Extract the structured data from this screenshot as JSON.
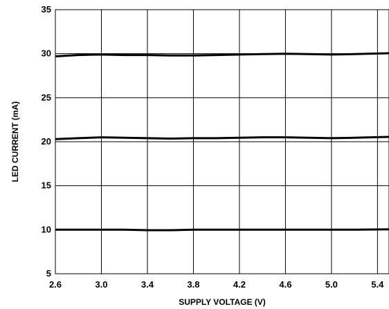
{
  "chart_data": {
    "type": "line",
    "title": "",
    "xlabel": "SUPPLY VOLTAGE (V)",
    "ylabel": "LED CURRENT (mA)",
    "xlim": [
      2.6,
      5.5
    ],
    "ylim": [
      5,
      35
    ],
    "xticks": [
      2.6,
      3.0,
      3.4,
      3.8,
      4.2,
      4.6,
      5.0,
      5.4
    ],
    "xtick_labels": [
      "2.6",
      "3.0",
      "3.4",
      "3.8",
      "4.2",
      "4.6",
      "5.0",
      "5.4"
    ],
    "yticks": [
      5,
      10,
      15,
      20,
      25,
      30,
      35
    ],
    "ytick_labels": [
      "5",
      "10",
      "15",
      "20",
      "25",
      "30",
      "35"
    ],
    "grid": true,
    "line_color": "#000000",
    "series": [
      {
        "x": [
          2.6,
          2.8,
          3.0,
          3.2,
          3.4,
          3.6,
          3.8,
          4.0,
          4.2,
          4.4,
          4.6,
          4.8,
          5.0,
          5.2,
          5.5
        ],
        "values": [
          29.7,
          29.85,
          29.9,
          29.85,
          29.85,
          29.8,
          29.8,
          29.85,
          29.9,
          29.95,
          30.0,
          29.95,
          29.9,
          29.95,
          30.05
        ]
      },
      {
        "x": [
          2.6,
          2.8,
          3.0,
          3.2,
          3.4,
          3.6,
          3.8,
          4.0,
          4.2,
          4.4,
          4.6,
          4.8,
          5.0,
          5.2,
          5.5
        ],
        "values": [
          20.3,
          20.4,
          20.5,
          20.45,
          20.4,
          20.35,
          20.4,
          20.4,
          20.45,
          20.5,
          20.5,
          20.45,
          20.4,
          20.45,
          20.55
        ]
      },
      {
        "x": [
          2.6,
          2.8,
          3.0,
          3.2,
          3.4,
          3.6,
          3.8,
          4.0,
          4.2,
          4.4,
          4.6,
          4.8,
          5.0,
          5.2,
          5.5
        ],
        "values": [
          10.0,
          10.0,
          10.0,
          10.0,
          9.95,
          9.95,
          10.0,
          10.0,
          10.0,
          10.0,
          10.0,
          10.0,
          10.0,
          10.0,
          10.05
        ]
      }
    ]
  }
}
